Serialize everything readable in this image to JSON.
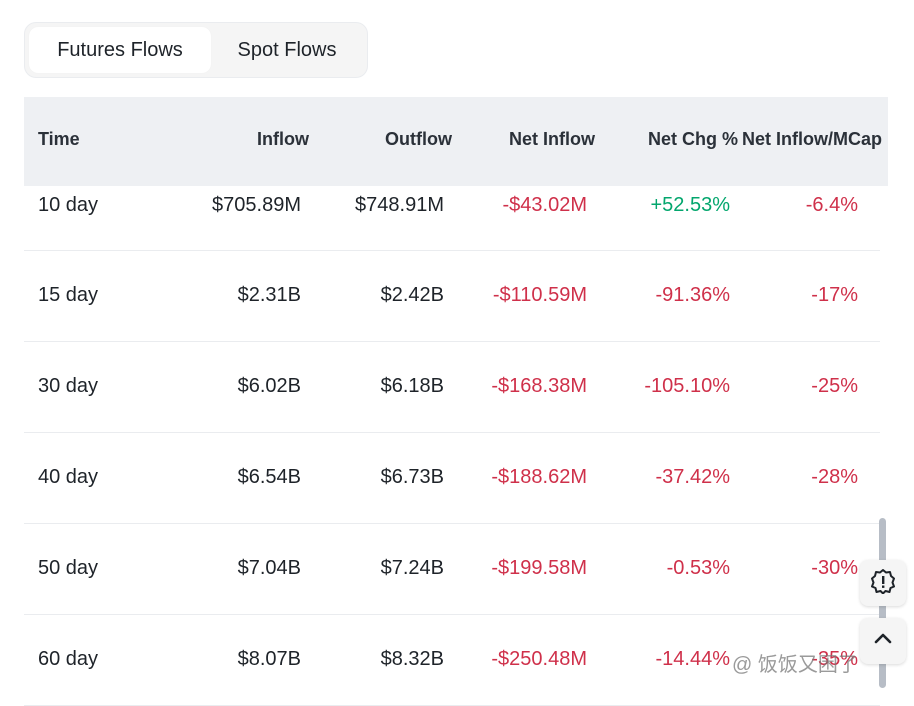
{
  "tabs": [
    {
      "label": "Futures Flows",
      "active": true
    },
    {
      "label": "Spot Flows",
      "active": false
    }
  ],
  "table": {
    "headers": {
      "time": "Time",
      "inflow": "Inflow",
      "outflow": "Outflow",
      "net_inflow": "Net Inflow",
      "net_chg": "Net Chg %",
      "net_mcap": "Net Inflow/MCap"
    },
    "rows": [
      {
        "time": "10 day",
        "inflow": "$705.89M",
        "outflow": "$748.91M",
        "net_inflow": "-$43.02M",
        "net_chg": "+52.53%",
        "net_mcap": "-6.4%"
      },
      {
        "time": "15 day",
        "inflow": "$2.31B",
        "outflow": "$2.42B",
        "net_inflow": "-$110.59M",
        "net_chg": "-91.36%",
        "net_mcap": "-17%"
      },
      {
        "time": "30 day",
        "inflow": "$6.02B",
        "outflow": "$6.18B",
        "net_inflow": "-$168.38M",
        "net_chg": "-105.10%",
        "net_mcap": "-25%"
      },
      {
        "time": "40 day",
        "inflow": "$6.54B",
        "outflow": "$6.73B",
        "net_inflow": "-$188.62M",
        "net_chg": "-37.42%",
        "net_mcap": "-28%"
      },
      {
        "time": "50 day",
        "inflow": "$7.04B",
        "outflow": "$7.24B",
        "net_inflow": "-$199.58M",
        "net_chg": "-0.53%",
        "net_mcap": "-30%"
      },
      {
        "time": "60 day",
        "inflow": "$8.07B",
        "outflow": "$8.32B",
        "net_inflow": "-$250.48M",
        "net_chg": "-14.44%",
        "net_mcap": "-35%"
      }
    ]
  },
  "icons": {
    "alert": "alert-badge-icon",
    "up": "chevron-up-icon"
  },
  "watermark": "@ 饭饭又困了",
  "colors": {
    "negative": "#cf304a",
    "positive": "#03a66d",
    "header_bg": "#eef0f3"
  }
}
